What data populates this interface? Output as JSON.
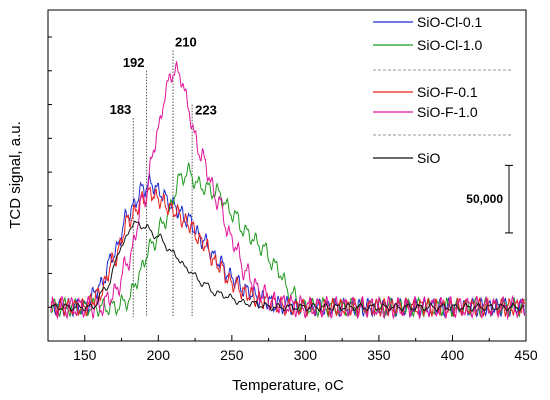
{
  "chart_data": {
    "type": "line",
    "xlabel": "Temperature, ",
    "xlabel_unit": "oC",
    "ylabel": "TCD signal, a.u.",
    "xlim": [
      125,
      450
    ],
    "ylim": [
      -25000,
      220000
    ],
    "x_ticks": [
      150,
      200,
      250,
      300,
      350,
      400,
      450
    ],
    "y_tick_labels": false,
    "grid": false,
    "legend_position": "top-right",
    "scale_bar": {
      "label": "50,000",
      "value": 50000,
      "y_from": 55000,
      "y_to": 105000
    },
    "peaks": [
      {
        "x": 183,
        "label": "183",
        "y_top": 140000
      },
      {
        "x": 192,
        "label": "192",
        "y_top": 175000
      },
      {
        "x": 210,
        "label": "210",
        "y_top": 190000
      },
      {
        "x": 223,
        "label": "223",
        "y_top": 150000
      }
    ],
    "series": [
      {
        "name": "SiO-Cl-0.1",
        "color": "#1f2bd1",
        "group": 1,
        "noise_amp": 5000,
        "noise_period": 5.5,
        "points": [
          [
            125,
            0
          ],
          [
            150,
            0
          ],
          [
            160,
            15000
          ],
          [
            170,
            40000
          ],
          [
            180,
            70000
          ],
          [
            190,
            88000
          ],
          [
            195,
            92000
          ],
          [
            200,
            86000
          ],
          [
            210,
            75000
          ],
          [
            220,
            65000
          ],
          [
            230,
            50000
          ],
          [
            240,
            35000
          ],
          [
            250,
            22000
          ],
          [
            260,
            12000
          ],
          [
            270,
            6000
          ],
          [
            280,
            2000
          ],
          [
            300,
            0
          ],
          [
            450,
            0
          ]
        ]
      },
      {
        "name": "SiO-Cl-1.0",
        "color": "#1f9a1f",
        "group": 1,
        "noise_amp": 5000,
        "noise_period": 6.5,
        "points": [
          [
            125,
            0
          ],
          [
            170,
            0
          ],
          [
            180,
            5000
          ],
          [
            185,
            20000
          ],
          [
            195,
            45000
          ],
          [
            205,
            65000
          ],
          [
            215,
            95000
          ],
          [
            220,
            100000
          ],
          [
            228,
            90000
          ],
          [
            240,
            85000
          ],
          [
            250,
            70000
          ],
          [
            260,
            55000
          ],
          [
            270,
            45000
          ],
          [
            280,
            30000
          ],
          [
            290,
            10000
          ],
          [
            300,
            0
          ],
          [
            450,
            0
          ]
        ]
      },
      {
        "name": "SiO-F-0.1",
        "color": "#e8211d",
        "group": 2,
        "noise_amp": 5000,
        "noise_period": 5,
        "points": [
          [
            125,
            0
          ],
          [
            150,
            0
          ],
          [
            160,
            10000
          ],
          [
            170,
            35000
          ],
          [
            180,
            65000
          ],
          [
            190,
            80000
          ],
          [
            195,
            85000
          ],
          [
            200,
            80000
          ],
          [
            210,
            72000
          ],
          [
            220,
            62000
          ],
          [
            230,
            48000
          ],
          [
            240,
            32000
          ],
          [
            250,
            18000
          ],
          [
            260,
            10000
          ],
          [
            270,
            5000
          ],
          [
            290,
            0
          ],
          [
            450,
            0
          ]
        ]
      },
      {
        "name": "SiO-F-1.0",
        "color": "#e0159a",
        "group": 2,
        "noise_amp": 6000,
        "noise_period": 6,
        "points": [
          [
            125,
            0
          ],
          [
            160,
            0
          ],
          [
            170,
            10000
          ],
          [
            180,
            35000
          ],
          [
            190,
            80000
          ],
          [
            200,
            130000
          ],
          [
            205,
            160000
          ],
          [
            210,
            175000
          ],
          [
            215,
            172000
          ],
          [
            220,
            150000
          ],
          [
            225,
            125000
          ],
          [
            230,
            110000
          ],
          [
            240,
            80000
          ],
          [
            250,
            50000
          ],
          [
            260,
            25000
          ],
          [
            270,
            10000
          ],
          [
            280,
            3000
          ],
          [
            300,
            0
          ],
          [
            450,
            0
          ]
        ]
      },
      {
        "name": "SiO",
        "color": "#111111",
        "group": 3,
        "noise_amp": 2000,
        "noise_period": 8,
        "points": [
          [
            125,
            0
          ],
          [
            155,
            0
          ],
          [
            165,
            15000
          ],
          [
            175,
            45000
          ],
          [
            183,
            62000
          ],
          [
            190,
            60000
          ],
          [
            200,
            52000
          ],
          [
            210,
            40000
          ],
          [
            220,
            28000
          ],
          [
            230,
            18000
          ],
          [
            240,
            10000
          ],
          [
            260,
            3000
          ],
          [
            280,
            0
          ],
          [
            450,
            0
          ]
        ]
      }
    ]
  }
}
